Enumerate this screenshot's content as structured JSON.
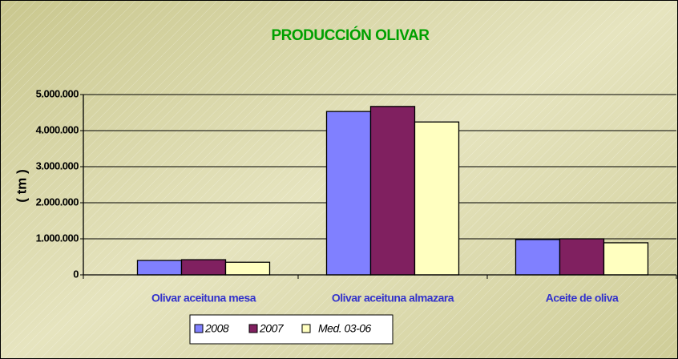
{
  "chart_data": {
    "type": "bar",
    "title": "PRODUCCIÓN OLIVAR",
    "y_label": "( tm )",
    "categories": [
      "Olivar aceituna mesa",
      "Olivar aceituna almazara",
      "Aceite de oliva"
    ],
    "series": [
      {
        "name": "2008",
        "color": "#8080ff",
        "values": [
          400000,
          4530000,
          980000
        ]
      },
      {
        "name": "2007",
        "color": "#802060",
        "values": [
          420000,
          4670000,
          1000000
        ]
      },
      {
        "name": "Med. 03-06",
        "color": "#ffffc0",
        "values": [
          350000,
          4240000,
          890000
        ]
      }
    ],
    "ylim": [
      0,
      5000000
    ],
    "yticks": [
      0,
      {
        "value": 1000000,
        "label": "1.000.000"
      },
      {
        "value": 2000000,
        "label": "2.000.000"
      },
      {
        "value": 3000000,
        "label": "3.000.000"
      },
      {
        "value": 4000000,
        "label": "4.000.000"
      },
      {
        "value": 5000000,
        "label": "5.000.000"
      }
    ],
    "grid": true
  }
}
